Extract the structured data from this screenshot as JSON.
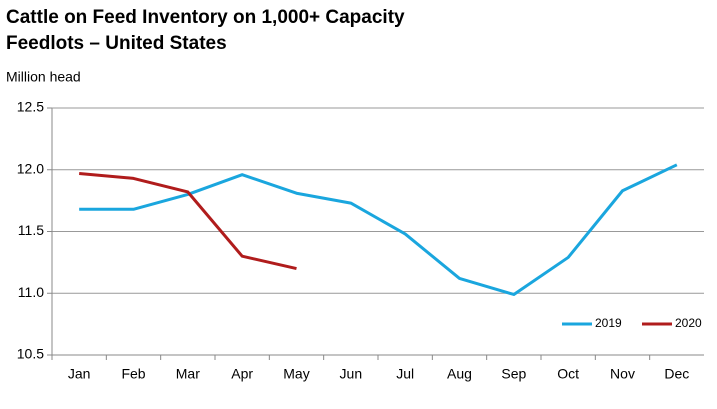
{
  "chart_data": {
    "type": "line",
    "title": [
      "Cattle on Feed Inventory on 1,000+ Capacity",
      "Feedlots – United States"
    ],
    "y_label": "Million head",
    "categories": [
      "Jan",
      "Feb",
      "Mar",
      "Apr",
      "May",
      "Jun",
      "Jul",
      "Aug",
      "Sep",
      "Oct",
      "Nov",
      "Dec"
    ],
    "series": [
      {
        "name": "2019",
        "color": "#1aa6de",
        "values": [
          11.68,
          11.68,
          11.8,
          11.96,
          11.81,
          11.73,
          11.48,
          11.12,
          10.99,
          11.29,
          11.83,
          12.04
        ]
      },
      {
        "name": "2020",
        "color": "#b01c1c",
        "values": [
          11.97,
          11.93,
          11.82,
          11.3,
          11.2,
          null,
          null,
          null,
          null,
          null,
          null,
          null
        ]
      }
    ],
    "ylim": [
      10.5,
      12.5
    ],
    "yticks": [
      10.5,
      {
        "value": 11.0,
        "label": "11.0"
      },
      11.5,
      {
        "value": 12.0,
        "label": "12.0"
      },
      12.5
    ],
    "grid": true,
    "legend": "lower right"
  }
}
